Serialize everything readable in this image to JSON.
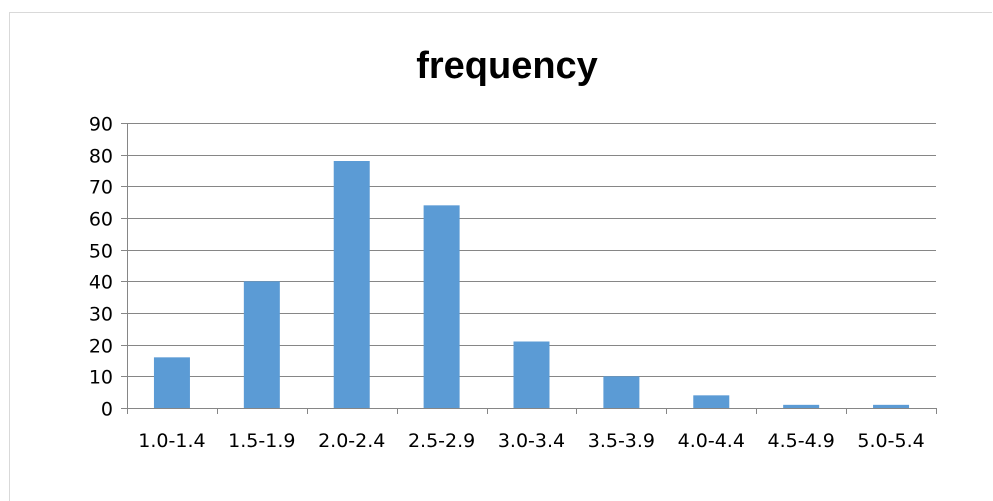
{
  "chart_data": {
    "type": "bar",
    "title": "frequency",
    "xlabel": "",
    "ylabel": "",
    "categories": [
      "1.0-1.4",
      "1.5-1.9",
      "2.0-2.4",
      "2.5-2.9",
      "3.0-3.4",
      "3.5-3.9",
      "4.0-4.4",
      "4.5-4.9",
      "5.0-5.4"
    ],
    "values": [
      16,
      40,
      78,
      64,
      21,
      10,
      4,
      1,
      1
    ],
    "ylim": [
      0,
      90
    ],
    "yticks": [
      0,
      10,
      20,
      30,
      40,
      50,
      60,
      70,
      80,
      90
    ],
    "grid": true,
    "legend": "none",
    "colors": {
      "bar": "#5b9bd5",
      "grid": "#868686",
      "axis": "#868686",
      "frame": "#d9d9d9"
    }
  }
}
